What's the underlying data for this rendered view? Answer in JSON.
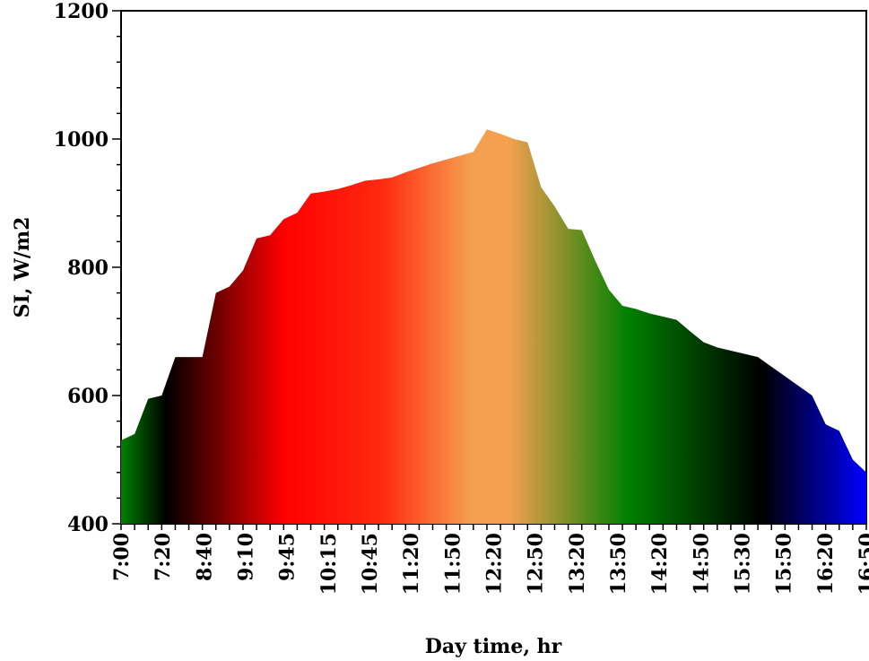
{
  "chart_data": {
    "type": "area",
    "title": "",
    "xlabel": "Day time, hr",
    "ylabel": "SI, W/m2",
    "ylim": [
      400,
      1200
    ],
    "yticks": [
      "400",
      "600",
      "800",
      "1000",
      "1200"
    ],
    "xtick_labels": [
      "7:00",
      "7:20",
      "8:40",
      "9:10",
      "9:45",
      "10:15",
      "10:45",
      "11:20",
      "11:50",
      "12:20",
      "12:50",
      "13:20",
      "13:50",
      "14:20",
      "14:50",
      "15:30",
      "15:50",
      "16:20",
      "16:50"
    ],
    "series": [
      {
        "values": [
          530,
          540,
          595,
          600,
          660,
          660,
          660,
          760,
          770,
          795,
          845,
          850,
          875,
          885,
          915,
          918,
          922,
          928,
          935,
          937,
          940,
          948,
          955,
          962,
          968,
          974,
          980,
          1015,
          1008,
          1000,
          995,
          925,
          895,
          860,
          858,
          810,
          765,
          740,
          735,
          728,
          723,
          718,
          700,
          683,
          675,
          670,
          665,
          660,
          645,
          630,
          615,
          600,
          555,
          545,
          500,
          480
        ]
      }
    ],
    "gradient": [
      {
        "stop": 0.0,
        "color": "#008000"
      },
      {
        "stop": 0.06,
        "color": "#000000"
      },
      {
        "stop": 0.22,
        "color": "#ff0000"
      },
      {
        "stop": 0.35,
        "color": "#ff2a10"
      },
      {
        "stop": 0.47,
        "color": "#f5a050"
      },
      {
        "stop": 0.52,
        "color": "#f5a050"
      },
      {
        "stop": 0.68,
        "color": "#008000"
      },
      {
        "stop": 0.86,
        "color": "#000000"
      },
      {
        "stop": 1.0,
        "color": "#0000ff"
      }
    ],
    "grid": false
  }
}
